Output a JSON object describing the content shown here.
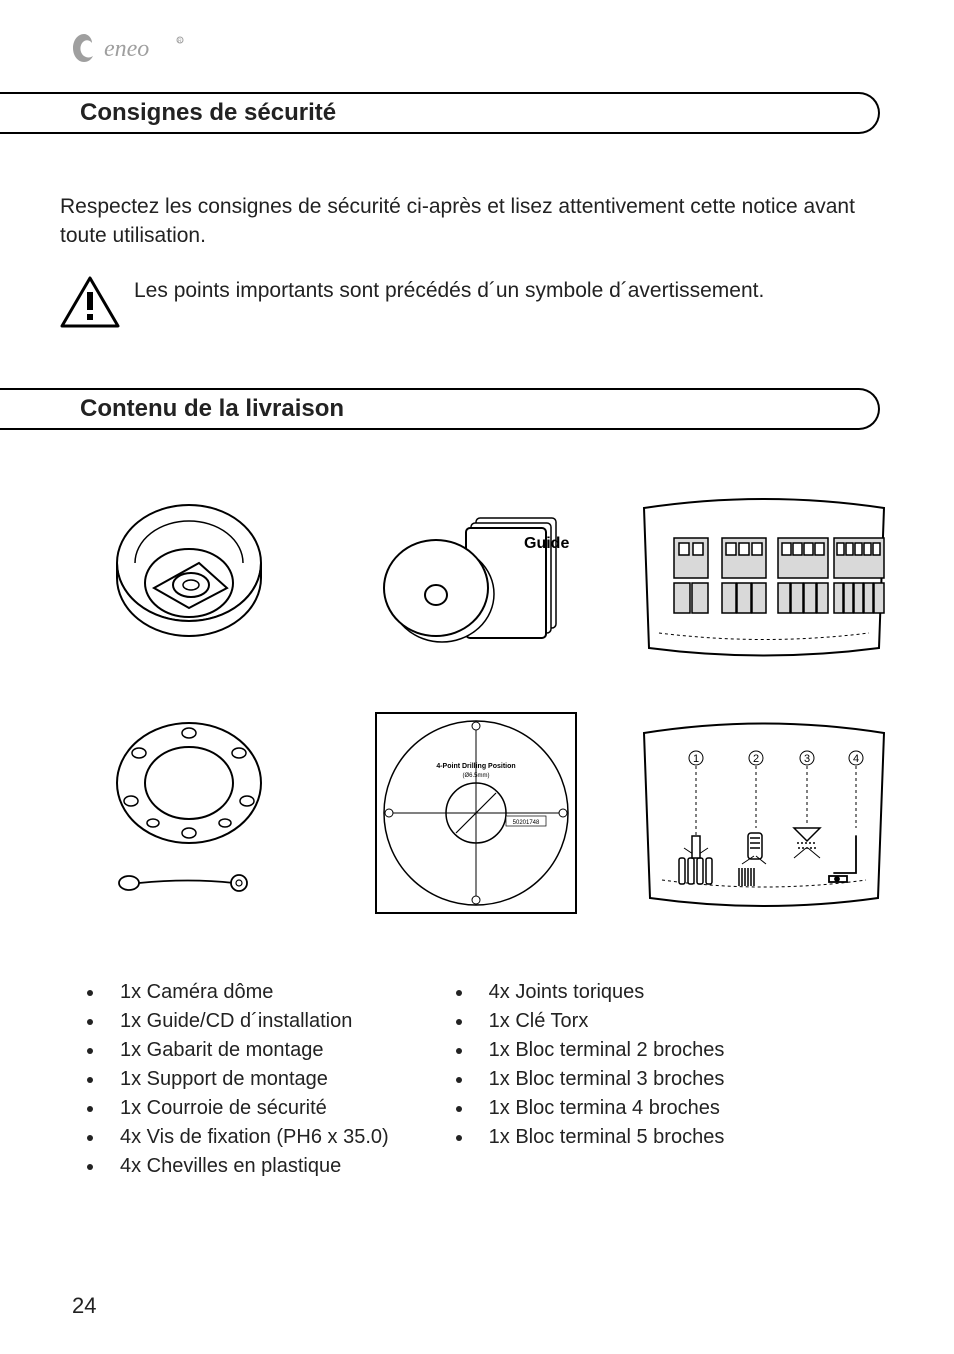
{
  "brand": {
    "name": "eneo"
  },
  "section1": {
    "title": "Consignes de sécurité",
    "intro": "Respectez les consignes de sécurité ci-après et lisez attentivement cette notice avant toute utilisation.",
    "warning_text": "Les points importants sont précédés d´un symbole d´avertissement."
  },
  "section2": {
    "title": "Contenu de la livraison",
    "guide_label": "Guide",
    "template_label_top": "4-Point Drilling Position",
    "template_label_sub": "(Ø6.5mm)",
    "template_serial": "50201748",
    "left_items": [
      "1x Caméra dôme",
      "1x Guide/CD d´installation",
      "1x Gabarit de montage",
      "1x Support de montage",
      "1x Courroie de sécurité",
      "4x Vis de fixation (PH6 x 35.0)",
      "4x Chevilles en plastique"
    ],
    "right_items": [
      "4x Joints toriques",
      "1x Clé Torx",
      "1x Bloc terminal 2 broches",
      "1x Bloc terminal 3 broches",
      "1x Bloc termina 4 broches",
      "1x Bloc terminal 5 broches"
    ]
  },
  "page_number": "24",
  "colors": {
    "text": "#222222",
    "line": "#000000",
    "grey": "#9f9f9f",
    "light_grey": "#d9d9d9",
    "bg": "#ffffff"
  }
}
